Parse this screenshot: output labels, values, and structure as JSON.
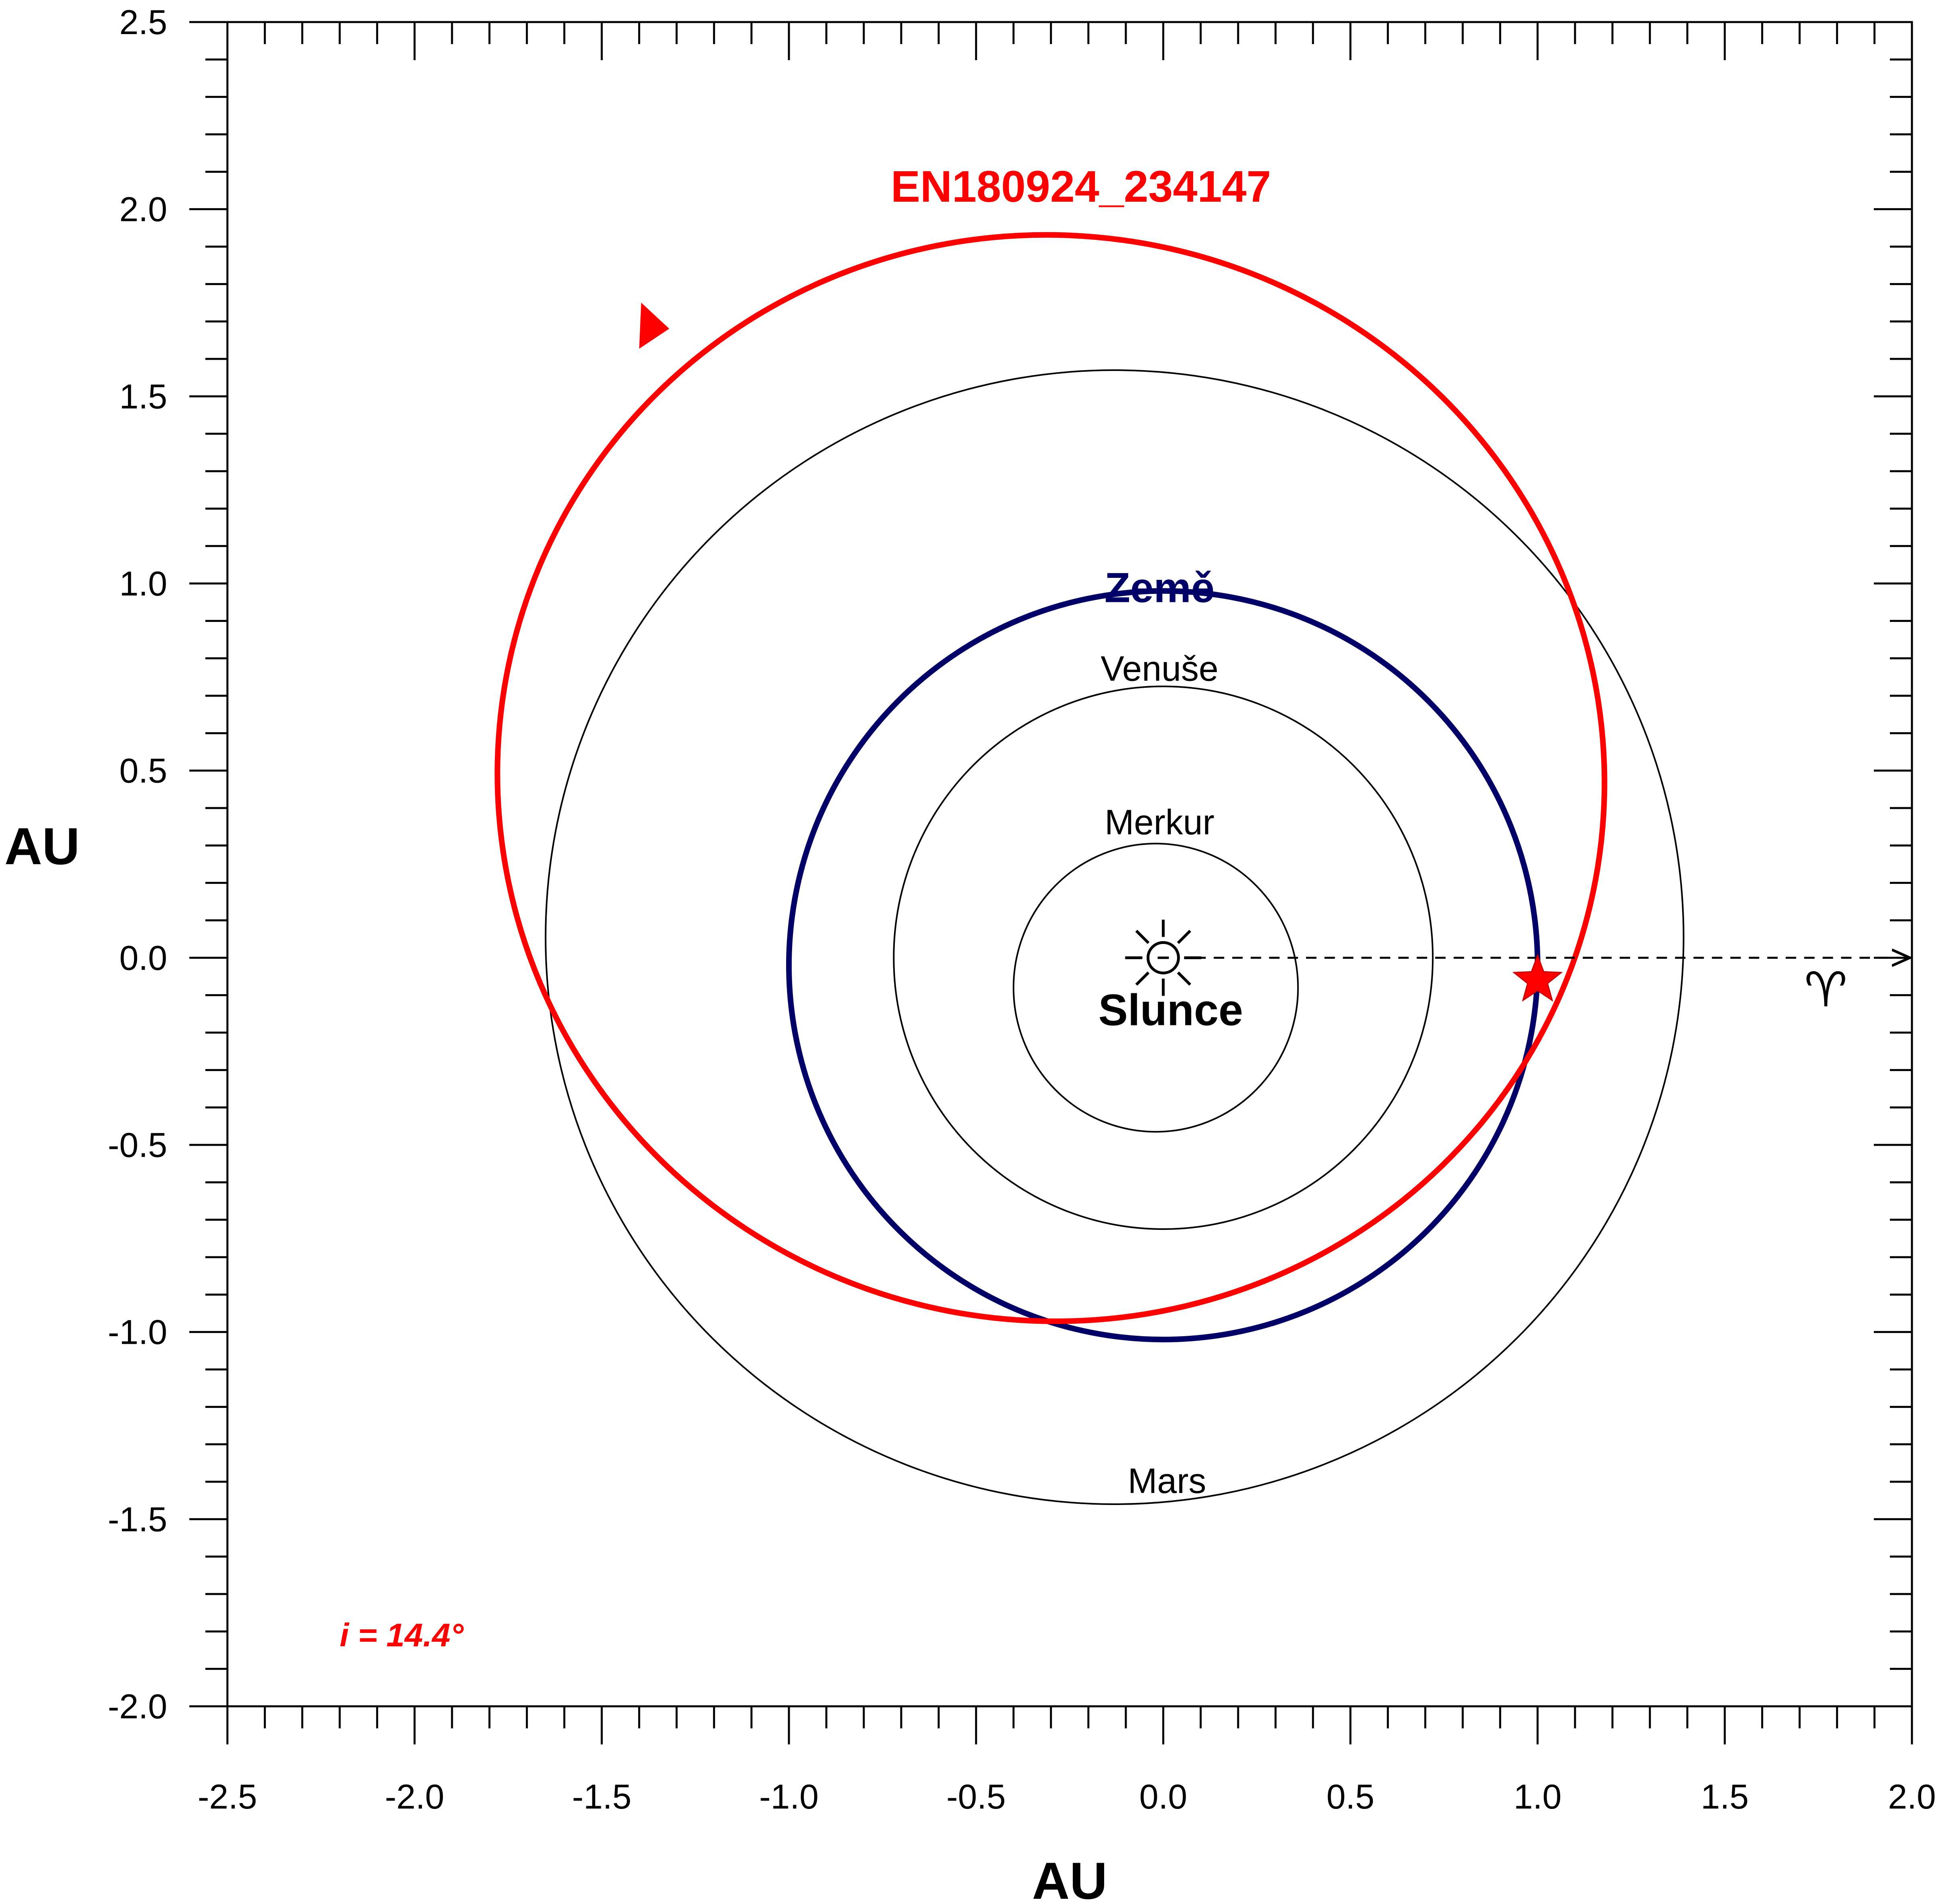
{
  "chart_data": {
    "type": "scatter",
    "xlabel": "AU",
    "ylabel": "AU",
    "xlim": [
      -2.5,
      2.0
    ],
    "ylim": [
      -2.0,
      2.5
    ],
    "x_ticks": [
      "-2.5",
      "-2.0",
      "-1.5",
      "-1.0",
      "-0.5",
      "0.0",
      "0.5",
      "1.0",
      "1.5",
      "2.0"
    ],
    "y_ticks": [
      "-2.0",
      "-1.5",
      "-1.0",
      "-0.5",
      "0.0",
      "0.5",
      "1.0",
      "1.5",
      "2.0",
      "2.5"
    ],
    "minor_tick_step": 0.1,
    "grid": false,
    "orbits": [
      {
        "name": "Merkur",
        "cx": -0.02,
        "cy": -0.08,
        "rx": 0.38,
        "ry": 0.385,
        "color": "#000000",
        "bold": false
      },
      {
        "name": "Venuše",
        "cx": 0.0,
        "cy": 0.0,
        "rx": 0.72,
        "ry": 0.725,
        "color": "#000000",
        "bold": false
      },
      {
        "name": "Země",
        "cx": 0.0,
        "cy": -0.02,
        "rx": 1.0,
        "ry": 1.0,
        "color": "#000066",
        "bold": true
      },
      {
        "name": "Mars",
        "cx": -0.13,
        "cy": 0.055,
        "rx": 1.52,
        "ry": 1.515,
        "color": "#000000",
        "bold": false
      }
    ],
    "meteoroid_orbit": {
      "name": "EN180924_234147",
      "cx": -0.3,
      "cy": 0.48,
      "rx": 1.48,
      "ry": 1.45,
      "rotation_deg": 12,
      "color": "#ff0000",
      "direction_arrow_at": [
        -1.4,
        1.67
      ]
    },
    "sun": {
      "label": "Slunce",
      "x": 0.0,
      "y": 0.0
    },
    "impact_point": {
      "x": 1.0,
      "y": -0.06,
      "marker": "star",
      "color": "#ff0000"
    },
    "vernal_equinox": {
      "symbol": "♈",
      "from": [
        0.0,
        0.0
      ],
      "to": [
        2.0,
        0.0
      ]
    },
    "annotation": {
      "text": "i = 14.4°",
      "color": "#ff0000"
    }
  }
}
